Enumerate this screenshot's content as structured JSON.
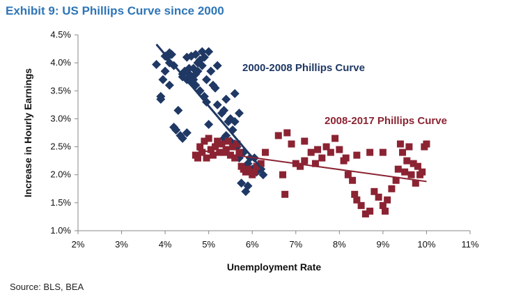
{
  "title": "Exhibit 9: US Phillips Curve since 2000",
  "source": "Source: BLS, BEA",
  "colors": {
    "series1": "#1f3864",
    "series2": "#8b2332",
    "title": "#2e75b6"
  },
  "chart_data": {
    "type": "scatter",
    "xlabel": "Unemployment Rate",
    "ylabel": "Increase in Hourly Earnings",
    "xlim": [
      2,
      11
    ],
    "ylim": [
      1.0,
      4.5
    ],
    "x_ticks": [
      "2%",
      "3%",
      "4%",
      "5%",
      "6%",
      "7%",
      "8%",
      "9%",
      "10%",
      "11%"
    ],
    "y_ticks": [
      "1.0%",
      "1.5%",
      "2.0%",
      "2.5%",
      "3.0%",
      "3.5%",
      "4.0%",
      "4.5%"
    ],
    "grid": false,
    "series": [
      {
        "name": "2000-2008 Phillips Curve",
        "marker": "diamond",
        "color": "#1f3864",
        "trendline": [
          [
            3.8,
            4.33
          ],
          [
            6.25,
            2.08
          ]
        ],
        "points": [
          [
            3.8,
            3.97
          ],
          [
            3.9,
            3.35
          ],
          [
            3.9,
            3.4
          ],
          [
            3.95,
            3.7
          ],
          [
            4.0,
            4.12
          ],
          [
            4.0,
            3.85
          ],
          [
            4.05,
            4.1
          ],
          [
            4.1,
            3.6
          ],
          [
            4.1,
            4.0
          ],
          [
            4.1,
            4.18
          ],
          [
            4.15,
            4.15
          ],
          [
            4.2,
            3.95
          ],
          [
            4.2,
            2.85
          ],
          [
            4.25,
            2.8
          ],
          [
            4.3,
            3.15
          ],
          [
            4.35,
            2.7
          ],
          [
            4.4,
            2.65
          ],
          [
            4.4,
            3.8
          ],
          [
            4.4,
            3.75
          ],
          [
            4.45,
            3.85
          ],
          [
            4.5,
            3.7
          ],
          [
            4.5,
            4.1
          ],
          [
            4.5,
            2.75
          ],
          [
            4.55,
            3.9
          ],
          [
            4.55,
            3.8
          ],
          [
            4.6,
            3.75
          ],
          [
            4.6,
            3.65
          ],
          [
            4.6,
            4.12
          ],
          [
            4.65,
            3.9
          ],
          [
            4.65,
            3.7
          ],
          [
            4.7,
            4.15
          ],
          [
            4.7,
            3.8
          ],
          [
            4.7,
            3.6
          ],
          [
            4.75,
            4.0
          ],
          [
            4.75,
            3.85
          ],
          [
            4.8,
            4.05
          ],
          [
            4.8,
            3.5
          ],
          [
            4.85,
            4.2
          ],
          [
            4.85,
            3.95
          ],
          [
            4.9,
            3.4
          ],
          [
            4.9,
            4.1
          ],
          [
            4.95,
            3.7
          ],
          [
            4.95,
            3.3
          ],
          [
            5.0,
            2.9
          ],
          [
            5.0,
            4.2
          ],
          [
            5.05,
            3.85
          ],
          [
            5.1,
            3.6
          ],
          [
            5.15,
            3.55
          ],
          [
            5.2,
            3.95
          ],
          [
            5.2,
            3.25
          ],
          [
            5.3,
            3.1
          ],
          [
            5.35,
            3.15
          ],
          [
            5.4,
            3.35
          ],
          [
            5.4,
            2.7
          ],
          [
            5.45,
            2.95
          ],
          [
            5.5,
            3.0
          ],
          [
            5.5,
            2.6
          ],
          [
            5.55,
            2.8
          ],
          [
            5.6,
            2.95
          ],
          [
            5.6,
            3.45
          ],
          [
            5.65,
            2.5
          ],
          [
            5.7,
            3.1
          ],
          [
            5.7,
            2.3
          ],
          [
            5.75,
            1.85
          ],
          [
            5.8,
            2.4
          ],
          [
            5.85,
            2.15
          ],
          [
            5.85,
            1.7
          ],
          [
            5.9,
            1.8
          ],
          [
            5.9,
            2.2
          ],
          [
            5.95,
            2.3
          ],
          [
            6.0,
            2.1
          ],
          [
            6.05,
            2.3
          ],
          [
            6.1,
            2.05
          ],
          [
            6.15,
            2.15
          ],
          [
            6.2,
            2.1
          ],
          [
            6.25,
            2.0
          ],
          [
            5.6,
            2.55
          ],
          [
            5.35,
            2.65
          ]
        ]
      },
      {
        "name": "2008-2017 Phillips Curve",
        "marker": "square",
        "color": "#8b2332",
        "trendline": [
          [
            4.75,
            2.44
          ],
          [
            10.0,
            1.88
          ]
        ],
        "points": [
          [
            4.7,
            2.35
          ],
          [
            4.75,
            2.3
          ],
          [
            4.8,
            2.5
          ],
          [
            4.85,
            2.4
          ],
          [
            4.9,
            2.6
          ],
          [
            4.95,
            2.3
          ],
          [
            5.0,
            2.65
          ],
          [
            5.05,
            2.45
          ],
          [
            5.1,
            2.35
          ],
          [
            5.15,
            2.5
          ],
          [
            5.2,
            2.6
          ],
          [
            5.25,
            2.4
          ],
          [
            5.3,
            2.55
          ],
          [
            5.35,
            2.4
          ],
          [
            5.4,
            2.45
          ],
          [
            5.45,
            2.6
          ],
          [
            5.5,
            2.35
          ],
          [
            5.55,
            2.5
          ],
          [
            5.6,
            2.3
          ],
          [
            5.65,
            2.55
          ],
          [
            5.7,
            2.4
          ],
          [
            5.75,
            2.15
          ],
          [
            5.8,
            2.1
          ],
          [
            5.85,
            2.05
          ],
          [
            5.9,
            2.1
          ],
          [
            6.0,
            2.0
          ],
          [
            6.05,
            2.05
          ],
          [
            6.1,
            2.15
          ],
          [
            6.2,
            2.2
          ],
          [
            6.3,
            2.4
          ],
          [
            6.6,
            2.7
          ],
          [
            6.7,
            2.0
          ],
          [
            6.75,
            1.65
          ],
          [
            6.8,
            2.75
          ],
          [
            6.9,
            2.55
          ],
          [
            7.0,
            2.2
          ],
          [
            7.1,
            2.15
          ],
          [
            7.2,
            2.25
          ],
          [
            7.35,
            2.4
          ],
          [
            7.5,
            2.45
          ],
          [
            7.6,
            2.3
          ],
          [
            7.7,
            2.5
          ],
          [
            7.8,
            2.4
          ],
          [
            7.9,
            2.65
          ],
          [
            8.0,
            2.45
          ],
          [
            8.1,
            2.25
          ],
          [
            8.15,
            2.3
          ],
          [
            8.2,
            2.0
          ],
          [
            8.3,
            1.9
          ],
          [
            8.35,
            1.65
          ],
          [
            8.4,
            1.55
          ],
          [
            8.5,
            1.45
          ],
          [
            8.6,
            1.3
          ],
          [
            8.7,
            1.35
          ],
          [
            8.8,
            1.7
          ],
          [
            8.9,
            1.6
          ],
          [
            9.0,
            1.45
          ],
          [
            9.05,
            1.35
          ],
          [
            9.1,
            1.55
          ],
          [
            9.2,
            1.75
          ],
          [
            9.3,
            1.9
          ],
          [
            9.35,
            2.1
          ],
          [
            9.4,
            2.55
          ],
          [
            9.45,
            2.4
          ],
          [
            9.5,
            2.05
          ],
          [
            9.55,
            2.25
          ],
          [
            9.6,
            2.5
          ],
          [
            9.65,
            2.0
          ],
          [
            9.7,
            2.2
          ],
          [
            9.75,
            1.85
          ],
          [
            9.8,
            2.15
          ],
          [
            9.85,
            2.0
          ],
          [
            9.9,
            2.05
          ],
          [
            9.95,
            2.5
          ],
          [
            10.0,
            2.55
          ],
          [
            8.4,
            2.35
          ],
          [
            9.0,
            2.4
          ],
          [
            8.7,
            2.4
          ],
          [
            7.2,
            2.6
          ],
          [
            7.45,
            2.2
          ]
        ]
      }
    ]
  }
}
